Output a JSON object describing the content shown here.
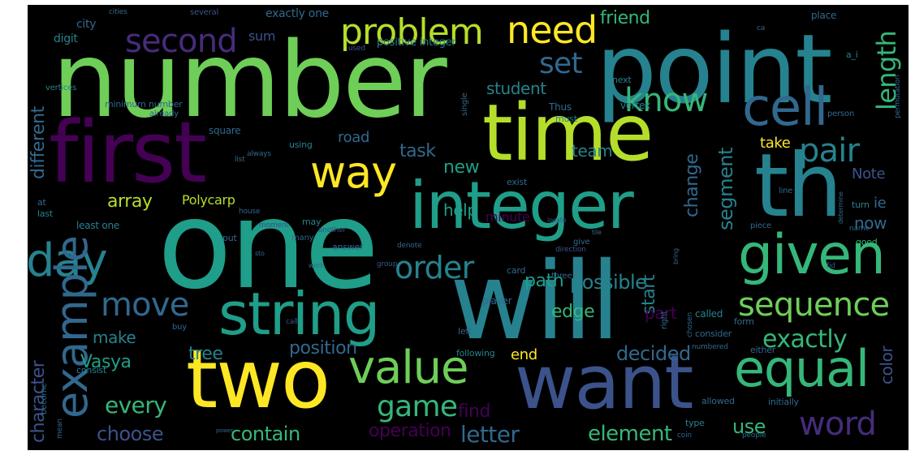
{
  "palette": {
    "background": "#000000",
    "purple": "#440154",
    "indigo": "#472c7a",
    "blue": "#3b528b",
    "slate": "#31688e",
    "teal": "#26828e",
    "aqua": "#1f9e89",
    "green": "#35b779",
    "lime": "#6ece58",
    "yellowgreen": "#b5de2b",
    "yellow": "#fde725"
  },
  "words": {
    "number": "number",
    "one": "one",
    "point": "point",
    "will": "will",
    "time": "time",
    "first": "first",
    "th": "th",
    "integer": "integer",
    "two": "two",
    "want": "want",
    "string": "string",
    "given": "given",
    "value": "value",
    "equal": "equal",
    "cell": "cell",
    "problem": "problem",
    "need": "need",
    "second": "second",
    "day": "day",
    "example": "example",
    "way": "way",
    "sequence": "sequence",
    "word": "word",
    "move": "move",
    "order": "order",
    "know": "know",
    "pair": "pair",
    "set": "set",
    "game": "game",
    "length": "length",
    "exactly": "exactly",
    "array": "array",
    "segment": "segment",
    "every": "every",
    "character": "character",
    "different": "different",
    "contain": "contain",
    "choose": "choose",
    "letter": "letter",
    "element": "element",
    "use": "use",
    "decided": "decided",
    "start": "start",
    "friend": "friend",
    "student": "student",
    "task": "task",
    "road": "road",
    "new": "new",
    "change": "change",
    "path": "path",
    "possible": "possible",
    "edge": "edge",
    "position": "position",
    "Vasya": "Vasya",
    "tree": "tree",
    "make": "make",
    "end": "end",
    "find": "find",
    "operation": "operation",
    "color": "color",
    "take": "take",
    "team": "team",
    "help": "help",
    "now": "now",
    "Note": "Note",
    "ie": "ie",
    "part": "part",
    "sum": "sum",
    "city": "city",
    "digit": "digit",
    "Polycarp": "Polycarp",
    "minute": "minute",
    "exactly_one": "exactly one",
    "positive_integer": "positive integer",
    "vertex": "vertex",
    "Thus": "Thus",
    "square": "square",
    "least_one": "least one",
    "cities": "cities",
    "several": "several",
    "place": "place",
    "used": "used",
    "next": "next",
    "must": "must",
    "single": "single",
    "minimum_number": "minimum number",
    "already": "already",
    "vertices": "vertices",
    "always": "always",
    "using": "using",
    "list": "list",
    "exist": "exist",
    "house": "house",
    "moment": "moment",
    "another": "another",
    "may": "may",
    "put": "put",
    "last": "last",
    "at": "at",
    "give": "give",
    "piece": "piece",
    "turn": "turn",
    "line": "line",
    "permutation": "permutation",
    "person": "person",
    "good": "good",
    "name": "name",
    "determine": "determine",
    "answer": "answer",
    "many": "many",
    "denote": "denote",
    "direction": "direction",
    "three": "three",
    "card": "card",
    "group": "group",
    "player": "player",
    "called": "called",
    "consider": "consider",
    "form": "form",
    "chosen": "chosen",
    "right": "right",
    "left": "left",
    "buy": "buy",
    "call": "call",
    "following": "following",
    "numbered": "numbered",
    "either": "either",
    "consist": "consist",
    "allowed": "allowed",
    "initially": "initially",
    "type": "type",
    "coin": "coin",
    "people": "people",
    "become": "become",
    "mean": "mean",
    "power": "power",
    "a_i": "a_i",
    "ca": "ca",
    "work": "work",
    "tile": "tile",
    "bring": "bring",
    "locate": "locate",
    "sto": "sto",
    "find_small": "fid"
  }
}
